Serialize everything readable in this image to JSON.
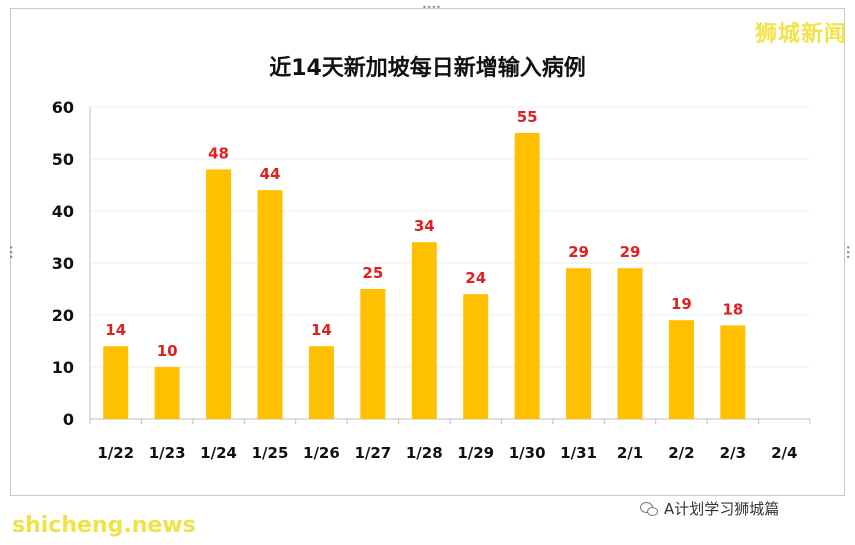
{
  "watermark_top": "狮城新闻",
  "watermark_bottom": "shicheng.news",
  "footer_source": "A计划学习狮城篇",
  "chart_data": {
    "type": "bar",
    "title": "近14天新加坡每日新增输入病例",
    "categories": [
      "1/22",
      "1/23",
      "1/24",
      "1/25",
      "1/26",
      "1/27",
      "1/28",
      "1/29",
      "1/30",
      "1/31",
      "2/1",
      "2/2",
      "2/3",
      "2/4"
    ],
    "values": [
      14,
      10,
      48,
      44,
      14,
      25,
      34,
      24,
      55,
      29,
      29,
      19,
      18,
      null
    ],
    "data_labels": [
      "14",
      "10",
      "48",
      "44",
      "14",
      "25",
      "34",
      "24",
      "55",
      "29",
      "29",
      "19",
      "18",
      ""
    ],
    "ylim": [
      0,
      60
    ],
    "yticks": [
      0,
      10,
      20,
      30,
      40,
      50,
      60
    ],
    "grid": true,
    "colors": {
      "bar": "#FFC000",
      "label": "#E02020",
      "axis": "#bfbfbf",
      "grid": "#ececec"
    }
  }
}
